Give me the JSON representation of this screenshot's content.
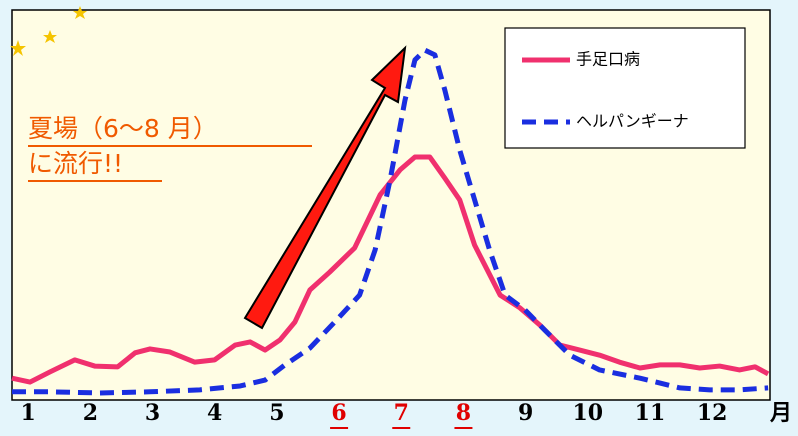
{
  "chart_data": {
    "type": "line",
    "annotations": [
      "夏場（6〜8 月）",
      "に流行!!"
    ],
    "x_label": "月",
    "xlim": [
      0.74,
      12.93
    ],
    "xticks": [
      1,
      2,
      3,
      4,
      5,
      6,
      7,
      8,
      9,
      10,
      11,
      12
    ],
    "highlighted_xticks": [
      6,
      7,
      8
    ],
    "highlight_color": "#e00000",
    "ylim": [
      0,
      100
    ],
    "series": [
      {
        "name": "手足口病",
        "color": "#f0306e",
        "dash": false,
        "x": [
          0.74,
          1.03,
          1.35,
          1.75,
          2.07,
          2.44,
          2.72,
          2.96,
          3.28,
          3.68,
          4.0,
          4.33,
          4.57,
          4.81,
          5.05,
          5.29,
          5.53,
          5.85,
          6.25,
          6.66,
          6.98,
          7.22,
          7.46,
          7.7,
          7.94,
          8.18,
          8.59,
          8.91,
          9.23,
          9.55,
          9.87,
          10.19,
          10.51,
          10.84,
          11.16,
          11.48,
          11.8,
          12.12,
          12.44,
          12.69,
          12.9
        ],
        "values": [
          5.6,
          4.6,
          7.2,
          10.3,
          8.7,
          8.5,
          12.1,
          13.1,
          12.3,
          9.7,
          10.3,
          14.1,
          14.9,
          12.8,
          15.4,
          20.0,
          28.2,
          32.8,
          39.0,
          52.6,
          59.0,
          62.3,
          62.3,
          56.9,
          51.3,
          39.7,
          26.9,
          23.6,
          19.2,
          14.1,
          12.8,
          11.5,
          9.7,
          8.2,
          9.0,
          9.0,
          8.2,
          8.7,
          7.7,
          8.5,
          6.7
        ]
      },
      {
        "name": "ヘルパンギーナ",
        "color": "#1a2ee0",
        "dash": true,
        "x": [
          0.74,
          1.35,
          2.15,
          2.96,
          3.76,
          4.41,
          4.81,
          5.13,
          5.53,
          5.93,
          6.33,
          6.58,
          6.82,
          7.06,
          7.22,
          7.38,
          7.54,
          7.7,
          7.94,
          8.18,
          8.42,
          8.67,
          8.99,
          9.31,
          9.71,
          10.19,
          10.84,
          11.48,
          11.96,
          12.44,
          12.9
        ],
        "values": [
          2.1,
          2.1,
          1.8,
          2.1,
          2.6,
          3.6,
          5.1,
          9.0,
          13.3,
          20.0,
          26.9,
          38.5,
          56.4,
          76.9,
          87.2,
          89.7,
          88.5,
          79.5,
          64.1,
          51.3,
          38.5,
          26.9,
          23.1,
          17.9,
          11.5,
          7.7,
          5.6,
          3.1,
          2.6,
          2.6,
          3.1
        ]
      }
    ]
  }
}
